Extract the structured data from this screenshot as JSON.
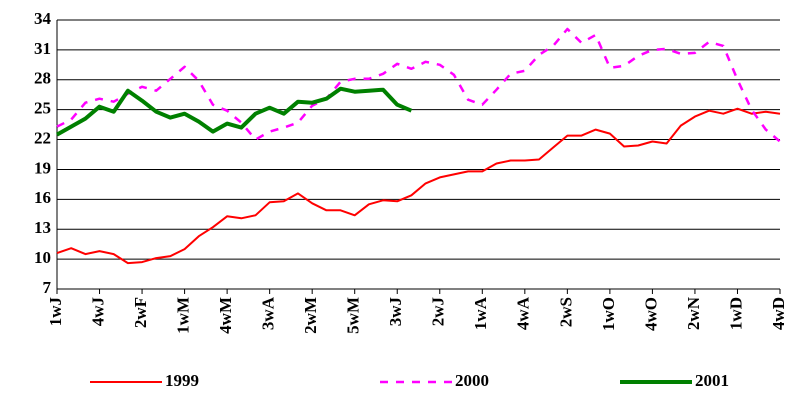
{
  "chart_data": {
    "type": "line",
    "categories": [
      "1wJ",
      null,
      null,
      "4wJ",
      null,
      null,
      "2wF",
      null,
      null,
      "1wM",
      null,
      null,
      "4wM",
      null,
      null,
      "3wA",
      null,
      null,
      "2wM",
      null,
      null,
      "5wM",
      null,
      null,
      "3wJ",
      null,
      null,
      "2wJ",
      null,
      null,
      "1wA",
      null,
      null,
      "4wA",
      null,
      null,
      "2wS",
      null,
      null,
      "1wO",
      null,
      null,
      "4wO",
      null,
      null,
      "2wN",
      null,
      null,
      "1wD",
      null,
      null,
      "4wD"
    ],
    "series": [
      {
        "name": "1999",
        "color": "#ff0000",
        "line_style": "solid",
        "values": [
          10.6,
          11.1,
          10.5,
          10.8,
          10.5,
          9.6,
          9.7,
          10.1,
          10.3,
          11.0,
          12.3,
          13.2,
          14.3,
          14.1,
          14.4,
          15.7,
          15.8,
          16.6,
          15.6,
          14.9,
          14.9,
          14.4,
          15.5,
          15.9,
          15.8,
          16.4,
          17.6,
          18.2,
          18.5,
          18.8,
          18.8,
          19.6,
          19.9,
          19.9,
          20.0,
          21.2,
          22.4,
          22.4,
          23.0,
          22.6,
          21.3,
          21.4,
          21.8,
          21.6,
          23.4,
          24.3,
          24.9,
          24.6,
          25.1,
          24.6,
          24.8,
          24.6
        ]
      },
      {
        "name": "2000",
        "color": "#ff00ff",
        "line_style": "dashed",
        "values": [
          23.3,
          24.0,
          25.7,
          26.1,
          25.8,
          26.6,
          27.3,
          26.9,
          28.1,
          29.3,
          27.9,
          25.5,
          24.9,
          23.7,
          22.0,
          22.8,
          23.2,
          23.7,
          25.4,
          26.1,
          27.8,
          28.1,
          28.1,
          28.6,
          29.6,
          29.1,
          29.8,
          29.5,
          28.5,
          26.0,
          25.5,
          27.0,
          28.6,
          28.9,
          30.5,
          31.4,
          33.1,
          31.7,
          32.5,
          29.2,
          29.4,
          30.4,
          31.0,
          31.1,
          30.6,
          30.7,
          31.8,
          31.4,
          28.0,
          25.0,
          23.0,
          21.8
        ]
      },
      {
        "name": "2001",
        "color": "#008000",
        "line_style": "solid",
        "values": [
          22.5,
          23.3,
          24.1,
          25.3,
          24.8,
          26.9,
          25.9,
          24.8,
          24.2,
          24.6,
          23.8,
          22.8,
          23.6,
          23.2,
          24.6,
          25.2,
          24.6,
          25.8,
          25.7,
          26.1,
          27.1,
          26.8,
          26.9,
          27.0,
          25.5,
          24.9,
          null,
          null,
          null,
          null,
          null,
          null,
          null,
          null,
          null,
          null,
          null,
          null,
          null,
          null,
          null,
          null,
          null,
          null,
          null,
          null,
          null,
          null,
          null,
          null,
          null,
          null
        ]
      }
    ],
    "ylim": [
      7,
      34
    ],
    "yticks": [
      7,
      10,
      13,
      16,
      19,
      22,
      25,
      28,
      31,
      34
    ],
    "grid": true,
    "legend": "bottom"
  }
}
